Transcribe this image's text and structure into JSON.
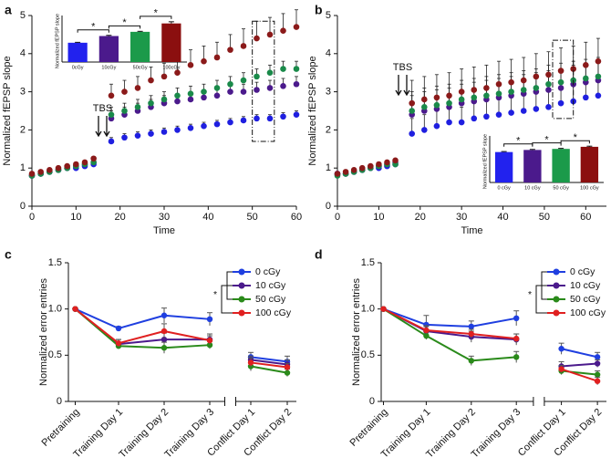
{
  "chart_data": [
    {
      "type": "scatter",
      "panel_label": "a",
      "xlabel": "Time",
      "ylabel": "Normalized fEPSP slope",
      "annotation": "TBS",
      "xlim": [
        0,
        60
      ],
      "xticks": [
        0,
        10,
        20,
        30,
        40,
        50,
        60
      ],
      "ylim": [
        0,
        5
      ],
      "yticks": [
        0,
        1,
        2,
        3,
        4,
        5
      ],
      "x": [
        0,
        2,
        4,
        6,
        8,
        10,
        12,
        14,
        18,
        21,
        24,
        27,
        30,
        33,
        36,
        39,
        42,
        45,
        48,
        51,
        54,
        57,
        60
      ],
      "series": [
        {
          "color": "#1f1fe0",
          "values": [
            0.8,
            0.85,
            0.9,
            0.95,
            1.0,
            1.0,
            1.05,
            1.1,
            1.7,
            1.8,
            1.85,
            1.9,
            1.95,
            2.0,
            2.05,
            2.1,
            2.15,
            2.2,
            2.25,
            2.3,
            2.3,
            2.35,
            2.4
          ],
          "errors": [
            0.05,
            0.05,
            0.05,
            0.05,
            0.05,
            0.05,
            0.05,
            0.05,
            0.1,
            0.1,
            0.1,
            0.1,
            0.1,
            0.1,
            0.1,
            0.1,
            0.1,
            0.1,
            0.1,
            0.1,
            0.1,
            0.1,
            0.1
          ]
        },
        {
          "color": "#4b1a8c",
          "values": [
            0.8,
            0.85,
            0.9,
            0.95,
            1.0,
            1.05,
            1.1,
            1.15,
            2.3,
            2.4,
            2.5,
            2.6,
            2.7,
            2.75,
            2.8,
            2.85,
            2.9,
            3.0,
            3.0,
            3.05,
            3.1,
            3.15,
            3.2
          ],
          "errors": [
            0.05,
            0.05,
            0.05,
            0.05,
            0.05,
            0.05,
            0.05,
            0.05,
            0.2,
            0.2,
            0.2,
            0.2,
            0.2,
            0.2,
            0.2,
            0.2,
            0.2,
            0.2,
            0.2,
            0.2,
            0.2,
            0.2,
            0.2
          ]
        },
        {
          "color": "#1a8a4a",
          "values": [
            0.8,
            0.85,
            0.9,
            0.95,
            1.0,
            1.05,
            1.1,
            1.15,
            2.4,
            2.5,
            2.6,
            2.7,
            2.8,
            2.9,
            2.95,
            3.0,
            3.1,
            3.2,
            3.3,
            3.4,
            3.5,
            3.6,
            3.6
          ],
          "errors": [
            0.05,
            0.05,
            0.05,
            0.05,
            0.05,
            0.05,
            0.05,
            0.05,
            0.2,
            0.2,
            0.2,
            0.2,
            0.2,
            0.2,
            0.2,
            0.2,
            0.2,
            0.2,
            0.2,
            0.2,
            0.2,
            0.2,
            0.2
          ]
        },
        {
          "color": "#8b1a1a",
          "values": [
            0.85,
            0.9,
            0.95,
            1.0,
            1.05,
            1.1,
            1.15,
            1.25,
            2.9,
            3.0,
            3.1,
            3.3,
            3.4,
            3.5,
            3.7,
            3.8,
            3.9,
            4.1,
            4.2,
            4.4,
            4.5,
            4.6,
            4.7
          ],
          "errors": [
            0.05,
            0.05,
            0.05,
            0.05,
            0.05,
            0.05,
            0.05,
            0.05,
            0.3,
            0.3,
            0.3,
            0.35,
            0.35,
            0.35,
            0.4,
            0.4,
            0.4,
            0.4,
            0.45,
            0.45,
            0.45,
            0.45,
            0.45
          ]
        }
      ],
      "inset": {
        "type": "bar",
        "ylabel": "Normalized fEPSP slope",
        "categories": [
          "0cGy",
          "10cGy",
          "50cGy",
          "100cGy"
        ],
        "values": [
          2.3,
          3.1,
          3.6,
          4.6
        ],
        "errors": [
          0.05,
          0.08,
          0.06,
          0.2
        ],
        "colors": [
          "#2222ee",
          "#4b1a8c",
          "#1b9a4a",
          "#8b0f0f"
        ],
        "ylim": [
          0,
          5
        ],
        "significance": [
          "*",
          "*",
          "*"
        ]
      }
    },
    {
      "type": "scatter",
      "panel_label": "b",
      "xlabel": "Time",
      "ylabel": "Normalized fEPSP slope",
      "annotation": "TBS",
      "xlim": [
        0,
        65
      ],
      "xticks": [
        0,
        10,
        20,
        30,
        40,
        50,
        60
      ],
      "ylim": [
        0,
        5
      ],
      "yticks": [
        0,
        1,
        2,
        3,
        4,
        5
      ],
      "x": [
        0,
        2,
        4,
        6,
        8,
        10,
        12,
        14,
        18,
        21,
        24,
        27,
        30,
        33,
        36,
        39,
        42,
        45,
        48,
        51,
        54,
        57,
        60,
        63
      ],
      "series": [
        {
          "color": "#1f1fe0",
          "values": [
            0.85,
            0.85,
            0.9,
            0.95,
            1.0,
            1.0,
            1.05,
            1.1,
            1.9,
            2.0,
            2.1,
            2.2,
            2.2,
            2.3,
            2.35,
            2.4,
            2.45,
            2.5,
            2.55,
            2.6,
            2.7,
            2.75,
            2.85,
            2.9
          ],
          "errors": [
            0.05,
            0.05,
            0.05,
            0.05,
            0.05,
            0.05,
            0.05,
            0.05,
            0.4,
            0.4,
            0.4,
            0.4,
            0.4,
            0.4,
            0.4,
            0.4,
            0.4,
            0.4,
            0.4,
            0.4,
            0.4,
            0.4,
            0.4,
            0.4
          ]
        },
        {
          "color": "#4b1a8c",
          "values": [
            0.85,
            0.85,
            0.9,
            0.95,
            1.0,
            1.05,
            1.1,
            1.15,
            2.4,
            2.5,
            2.55,
            2.6,
            2.7,
            2.75,
            2.8,
            2.85,
            2.9,
            2.95,
            3.0,
            3.05,
            3.1,
            3.2,
            3.25,
            3.3
          ],
          "errors": [
            0.05,
            0.05,
            0.05,
            0.05,
            0.05,
            0.05,
            0.05,
            0.05,
            0.5,
            0.5,
            0.5,
            0.5,
            0.5,
            0.5,
            0.5,
            0.5,
            0.5,
            0.5,
            0.5,
            0.5,
            0.5,
            0.5,
            0.5,
            0.5
          ]
        },
        {
          "color": "#1a8a4a",
          "values": [
            0.8,
            0.85,
            0.9,
            0.95,
            1.0,
            1.05,
            1.1,
            1.1,
            2.5,
            2.6,
            2.65,
            2.7,
            2.8,
            2.85,
            2.9,
            2.95,
            3.0,
            3.05,
            3.1,
            3.2,
            3.25,
            3.3,
            3.35,
            3.4
          ],
          "errors": [
            0.05,
            0.05,
            0.05,
            0.05,
            0.05,
            0.05,
            0.05,
            0.05,
            0.5,
            0.5,
            0.5,
            0.5,
            0.5,
            0.5,
            0.5,
            0.5,
            0.5,
            0.5,
            0.5,
            0.5,
            0.5,
            0.5,
            0.5,
            0.5
          ]
        },
        {
          "color": "#8b1a1a",
          "values": [
            0.85,
            0.9,
            0.95,
            1.0,
            1.05,
            1.1,
            1.15,
            1.2,
            2.7,
            2.8,
            2.85,
            2.9,
            3.0,
            3.05,
            3.1,
            3.2,
            3.25,
            3.3,
            3.4,
            3.45,
            3.55,
            3.6,
            3.7,
            3.8
          ],
          "errors": [
            0.05,
            0.05,
            0.05,
            0.05,
            0.05,
            0.05,
            0.05,
            0.05,
            0.6,
            0.6,
            0.6,
            0.6,
            0.6,
            0.6,
            0.6,
            0.6,
            0.6,
            0.6,
            0.6,
            0.6,
            0.6,
            0.6,
            0.6,
            0.6
          ]
        }
      ],
      "inset": {
        "type": "bar",
        "ylabel": "Normalized fEPSP slope",
        "categories": [
          "0 cGy",
          "10 cGy",
          "50 cGy",
          "100 cGy"
        ],
        "values": [
          2.9,
          3.1,
          3.2,
          3.4
        ],
        "errors": [
          0.05,
          0.05,
          0.05,
          0.06
        ],
        "colors": [
          "#2222ee",
          "#4b1a8c",
          "#1b9a4a",
          "#8b0f0f"
        ],
        "ylim": [
          0,
          4
        ],
        "significance": [
          "*",
          "*",
          "*"
        ]
      }
    },
    {
      "type": "line",
      "panel_label": "c",
      "ylabel": "Normalized error entries",
      "x_axis_break_after": 3,
      "categories": [
        "Pretraining",
        "Training Day 1",
        "Training Day 2",
        "Training Day 3",
        "Conflict Day 1",
        "Conflict Day 2"
      ],
      "ylim": [
        0,
        1.5
      ],
      "yticks": [
        0,
        0.5,
        {
          "value": 1,
          "label": "1.0"
        },
        1.5
      ],
      "legend_significance": "*",
      "series": [
        {
          "name": "0 cGy",
          "color": "#1f3fe0",
          "values": [
            1.0,
            0.79,
            0.93,
            0.89,
            0.48,
            0.43
          ],
          "errors": [
            0,
            0.02,
            0.08,
            0.07,
            0.05,
            0.06
          ]
        },
        {
          "name": "10 cGy",
          "color": "#4b1a8c",
          "values": [
            1.0,
            0.62,
            0.67,
            0.67,
            0.45,
            0.4
          ],
          "errors": [
            0,
            0.05,
            0.07,
            0.06,
            0.04,
            0.05
          ]
        },
        {
          "name": "50 cGy",
          "color": "#2a8a1a",
          "values": [
            1.0,
            0.6,
            0.58,
            0.61,
            0.38,
            0.31
          ],
          "errors": [
            0,
            0.03,
            0.06,
            0.04,
            0.05,
            0.04
          ]
        },
        {
          "name": "100 cGy",
          "color": "#e02020",
          "values": [
            1.0,
            0.63,
            0.76,
            0.66,
            0.42,
            0.37
          ],
          "errors": [
            0,
            0.04,
            0.08,
            0.05,
            0.05,
            0.04
          ]
        }
      ]
    },
    {
      "type": "line",
      "panel_label": "d",
      "ylabel": "Normalized error entries",
      "x_axis_break_after": 3,
      "categories": [
        "Pretraining",
        "Training Day 1",
        "Training Day 2",
        "Training Day 3",
        "Conflict Day 1",
        "Conflict Day 2"
      ],
      "ylim": [
        0,
        1.5
      ],
      "yticks": [
        0,
        0.5,
        {
          "value": 1,
          "label": "1.0"
        },
        1.5
      ],
      "legend_significance": "*",
      "series": [
        {
          "name": "0 cGy",
          "color": "#1f3fe0",
          "values": [
            1.0,
            0.83,
            0.81,
            0.9,
            0.57,
            0.48
          ],
          "errors": [
            0,
            0.1,
            0.06,
            0.08,
            0.06,
            0.05
          ]
        },
        {
          "name": "10 cGy",
          "color": "#4b1a8c",
          "values": [
            1.0,
            0.76,
            0.7,
            0.67,
            0.38,
            0.41
          ],
          "errors": [
            0,
            0.06,
            0.06,
            0.06,
            0.05,
            0.04
          ]
        },
        {
          "name": "50 cGy",
          "color": "#2a8a1a",
          "values": [
            1.0,
            0.71,
            0.44,
            0.48,
            0.33,
            0.29
          ],
          "errors": [
            0,
            0.04,
            0.05,
            0.06,
            0.04,
            0.04
          ]
        },
        {
          "name": "100 cGy",
          "color": "#e02020",
          "values": [
            1.0,
            0.77,
            0.73,
            0.68,
            0.35,
            0.22
          ],
          "errors": [
            0,
            0.04,
            0.05,
            0.05,
            0.04,
            0.04
          ]
        }
      ]
    }
  ]
}
